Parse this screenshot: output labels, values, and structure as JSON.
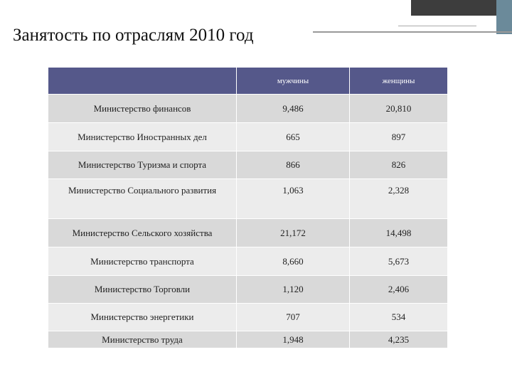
{
  "title": "Занятость по отраслям 2010 год",
  "table": {
    "columns": [
      "мужчины",
      "женщины"
    ],
    "rows": [
      [
        "Министерство финансов",
        "9,486",
        "20,810"
      ],
      [
        "Министерство Иностранных дел",
        "665",
        "897"
      ],
      [
        "Министерство Туризма и спорта",
        "866",
        "826"
      ],
      [
        "Министерство Социального развития",
        "1,063",
        "2,328"
      ],
      [
        "Министерство Сельского хозяйства",
        "21,172",
        "14,498"
      ],
      [
        "Министерство транспорта",
        "8,660",
        "5,673"
      ],
      [
        "Министерство Торговли",
        "1,120",
        "2,406"
      ],
      [
        "Министерство энергетики",
        "707",
        "534"
      ],
      [
        "Министерство труда",
        "1,948",
        "4,235"
      ]
    ]
  }
}
